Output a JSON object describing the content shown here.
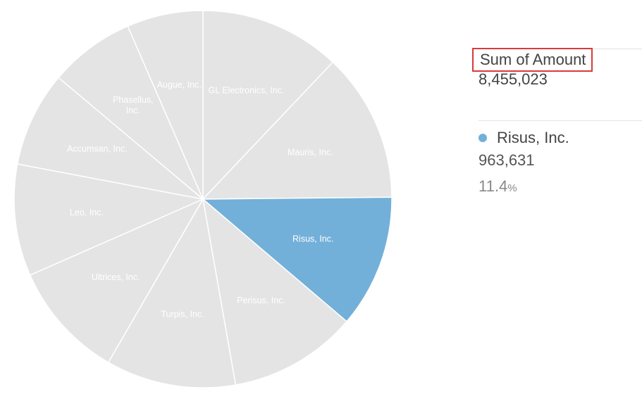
{
  "chart_data": {
    "type": "pie",
    "categories": [
      "GL Electronics, Inc.",
      "Mauris, Inc.",
      "Risus, Inc.",
      "Perisus, Inc.",
      "Turpis, Inc.",
      "Ultrices, Inc.",
      "Leo, Inc.",
      "Accumsan, Inc.",
      "Phasellus, Inc.",
      "Augue, Inc."
    ],
    "label_lines": [
      [
        "GL Electronics, Inc."
      ],
      [
        "Mauris, Inc."
      ],
      [
        "Risus, Inc."
      ],
      [
        "Perisus, Inc."
      ],
      [
        "Turpis, Inc."
      ],
      [
        "Ultrices, Inc."
      ],
      [
        "Leo, Inc."
      ],
      [
        "Accumsan, Inc."
      ],
      [
        "Phasellus,",
        "Inc."
      ],
      [
        "Augue, Inc."
      ]
    ],
    "values": [
      1020000,
      1080000,
      963631,
      930000,
      940000,
      850000,
      810000,
      690000,
      620000,
      551392
    ],
    "selected_index": 2,
    "colors": {
      "slice": "#e3e4e3",
      "selected": "#72b0d9",
      "separator": "#ffffff",
      "label": "#ffffff"
    },
    "start_angle_deg": 0,
    "direction": "clockwise"
  },
  "summary": {
    "metric_label": "Sum of Amount",
    "total": "8,455,023"
  },
  "selection": {
    "name": "Risus, Inc.",
    "value": "963,631",
    "percent": "11.4",
    "percent_sign": "%",
    "dot_color": "#72b0d9"
  }
}
